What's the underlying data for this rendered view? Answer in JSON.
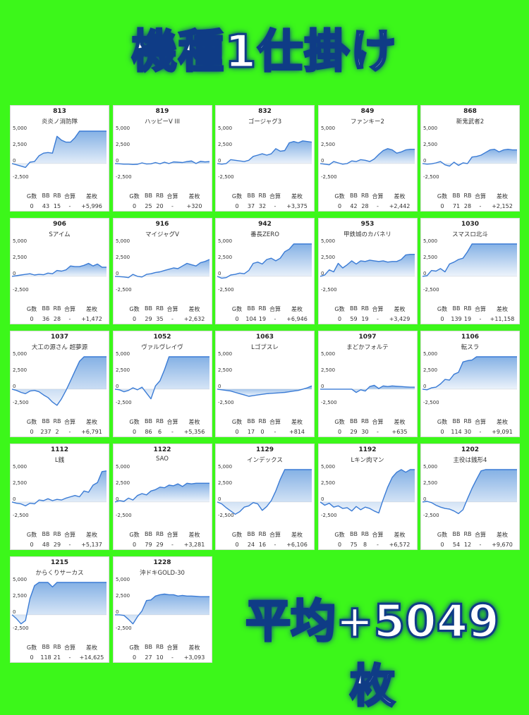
{
  "header": {
    "title": "機種1仕掛け"
  },
  "footer": {
    "average": "平均+5049枚"
  },
  "stat_headers": [
    "G数",
    "BB",
    "RB",
    "合算",
    "差枚"
  ],
  "colors": {
    "background": "#3cf71a",
    "line": "#3a7bd5",
    "fill": "#6fa3e0",
    "text_outline": "#0f3c86"
  },
  "chart_data": [
    {
      "type": "area",
      "number": "813",
      "name": "炎炎ノ消防隊",
      "ylim": [
        -3500,
        5000
      ],
      "yticks": [
        "5,000",
        "2,500",
        "0",
        "-2,500"
      ],
      "stats": {
        "g": "0",
        "bb": "43",
        "rb": "15",
        "gousan": "-",
        "samai": "+5,996"
      },
      "values": [
        0,
        -200,
        -400,
        -600,
        200,
        300,
        1200,
        1600,
        1700,
        1600,
        4200,
        3600,
        3300,
        3300,
        4000,
        5000,
        5000,
        5000,
        5000,
        5000,
        5000,
        5000
      ]
    },
    {
      "type": "area",
      "number": "819",
      "name": "ハッピーV III",
      "ylim": [
        -3500,
        5000
      ],
      "yticks": [
        "5,000",
        "2,500",
        "0",
        "-2,500"
      ],
      "stats": {
        "g": "0",
        "bb": "25",
        "rb": "20",
        "gousan": "-",
        "samai": "+320"
      },
      "values": [
        0,
        -50,
        -100,
        -100,
        -150,
        -120,
        100,
        -80,
        -50,
        150,
        -50,
        200,
        0,
        250,
        200,
        150,
        300,
        400,
        0,
        350,
        250,
        300
      ]
    },
    {
      "type": "area",
      "number": "832",
      "name": "ゴージャグ3",
      "ylim": [
        -3500,
        5000
      ],
      "yticks": [
        "5,000",
        "2,500",
        "0",
        "-2,500"
      ],
      "stats": {
        "g": "0",
        "bb": "37",
        "rb": "32",
        "gousan": "-",
        "samai": "+3,375"
      },
      "values": [
        0,
        -100,
        0,
        600,
        500,
        400,
        300,
        500,
        1100,
        1300,
        1500,
        1300,
        1500,
        2300,
        1900,
        2000,
        3200,
        3400,
        3200,
        3500,
        3400,
        3300
      ]
    },
    {
      "type": "area",
      "number": "849",
      "name": "ファンキー2",
      "ylim": [
        -3500,
        5000
      ],
      "yticks": [
        "5,000",
        "2,500",
        "0",
        "-2,500"
      ],
      "stats": {
        "g": "0",
        "bb": "42",
        "rb": "28",
        "gousan": "-",
        "samai": "+2,442"
      },
      "values": [
        0,
        -100,
        -200,
        300,
        100,
        -100,
        0,
        400,
        300,
        600,
        500,
        300,
        700,
        1400,
        2000,
        2300,
        2100,
        1600,
        1800,
        2100,
        2200,
        2200
      ]
    },
    {
      "type": "area",
      "number": "868",
      "name": "新鬼武者2",
      "ylim": [
        -3500,
        5000
      ],
      "yticks": [
        "5,000",
        "2,500",
        "0",
        "-2,500"
      ],
      "stats": {
        "g": "0",
        "bb": "71",
        "rb": "28",
        "gousan": "-",
        "samai": "+2,152"
      },
      "values": [
        0,
        -100,
        -50,
        100,
        300,
        -200,
        -400,
        200,
        -300,
        100,
        0,
        1000,
        1100,
        1300,
        1700,
        2100,
        2200,
        1800,
        2100,
        2200,
        2100,
        2100
      ]
    },
    {
      "type": "area",
      "number": "906",
      "name": "Sアイム",
      "ylim": [
        -3500,
        5000
      ],
      "yticks": [
        "5,000",
        "2,500",
        "0",
        "-2,500"
      ],
      "stats": {
        "g": "0",
        "bb": "36",
        "rb": "28",
        "gousan": "-",
        "samai": "+1,472"
      },
      "values": [
        0,
        100,
        200,
        300,
        400,
        200,
        300,
        250,
        500,
        400,
        900,
        800,
        1000,
        1600,
        1500,
        1500,
        1700,
        2000,
        1600,
        1900,
        1400,
        1400
      ]
    },
    {
      "type": "area",
      "number": "916",
      "name": "マイジャグV",
      "ylim": [
        -3500,
        5000
      ],
      "yticks": [
        "5,000",
        "2,500",
        "0",
        "-2,500"
      ],
      "stats": {
        "g": "0",
        "bb": "29",
        "rb": "35",
        "gousan": "-",
        "samai": "+2,632"
      },
      "values": [
        0,
        -50,
        -100,
        -200,
        300,
        0,
        -100,
        300,
        400,
        600,
        700,
        900,
        1100,
        1300,
        1200,
        1600,
        2000,
        1800,
        1600,
        2100,
        2300,
        2600
      ]
    },
    {
      "type": "area",
      "number": "942",
      "name": "番長ZERO",
      "ylim": [
        -3500,
        5000
      ],
      "yticks": [
        "5,000",
        "2,500",
        "0",
        "-2,500"
      ],
      "stats": {
        "g": "0",
        "bb": "104",
        "rb": "19",
        "gousan": "-",
        "samai": "+6,946"
      },
      "values": [
        0,
        -300,
        -200,
        200,
        300,
        500,
        400,
        900,
        2000,
        2200,
        1900,
        2600,
        2800,
        2400,
        2800,
        3800,
        4200,
        5000,
        5000,
        5000,
        5000,
        5000
      ]
    },
    {
      "type": "area",
      "number": "953",
      "name": "甲鉄城のカバネリ",
      "ylim": [
        -3500,
        5000
      ],
      "yticks": [
        "5,000",
        "2,500",
        "0",
        "-2,500"
      ],
      "stats": {
        "g": "0",
        "bb": "59",
        "rb": "19",
        "gousan": "-",
        "samai": "+3,429"
      },
      "values": [
        0,
        200,
        1000,
        700,
        2000,
        1300,
        1800,
        2400,
        1900,
        2400,
        2300,
        2500,
        2400,
        2300,
        2400,
        2200,
        2300,
        2300,
        2600,
        3300,
        3400,
        3400
      ]
    },
    {
      "type": "area",
      "number": "1030",
      "name": "スマスロ北斗",
      "ylim": [
        -3500,
        5000
      ],
      "yticks": [
        "5,000",
        "2,500",
        "0",
        "-2,500"
      ],
      "stats": {
        "g": "0",
        "bb": "139",
        "rb": "19",
        "gousan": "-",
        "samai": "+11,158"
      },
      "values": [
        0,
        100,
        900,
        800,
        1200,
        700,
        1900,
        2200,
        2600,
        2800,
        3800,
        5000,
        5000,
        5000,
        5000,
        5000,
        5000,
        5000,
        5000,
        5000,
        5000,
        5000
      ]
    },
    {
      "type": "area",
      "number": "1037",
      "name": "大工の源さん 超夢源",
      "ylim": [
        -3500,
        5000
      ],
      "yticks": [
        "5,000",
        "2,500",
        "0",
        "-2,500"
      ],
      "stats": {
        "g": "0",
        "bb": "237",
        "rb": "2",
        "gousan": "-",
        "samai": "+6,791"
      },
      "values": [
        0,
        -200,
        -500,
        -700,
        -300,
        -200,
        -400,
        -900,
        -1300,
        -2000,
        -2500,
        -1500,
        -200,
        1300,
        2800,
        4300,
        5000,
        5000,
        5000,
        5000,
        5000,
        5000
      ]
    },
    {
      "type": "area",
      "number": "1052",
      "name": "ヴァルヴレイヴ",
      "ylim": [
        -3500,
        5000
      ],
      "yticks": [
        "5,000",
        "2,500",
        "0",
        "-2,500"
      ],
      "stats": {
        "g": "0",
        "bb": "86",
        "rb": "6",
        "gousan": "-",
        "samai": "+5,356"
      },
      "values": [
        0,
        -100,
        -400,
        -200,
        200,
        -100,
        300,
        -600,
        -1500,
        500,
        1300,
        3000,
        5000,
        5000,
        5000,
        5000,
        5000,
        5000,
        5000,
        5000,
        5000,
        5000
      ]
    },
    {
      "type": "area",
      "number": "1063",
      "name": "Lゴブスレ",
      "ylim": [
        -3500,
        5000
      ],
      "yticks": [
        "5,000",
        "2,500",
        "0",
        "-2,500"
      ],
      "stats": {
        "g": "0",
        "bb": "17",
        "rb": "0",
        "gousan": "-",
        "samai": "+814"
      },
      "values": [
        0,
        -100,
        -200,
        -300,
        -500,
        -700,
        -900,
        -1100,
        -1000,
        -900,
        -800,
        -700,
        -650,
        -600,
        -550,
        -500,
        -400,
        -300,
        -200,
        0,
        200,
        500
      ]
    },
    {
      "type": "area",
      "number": "1097",
      "name": "まどかフォルテ",
      "ylim": [
        -3500,
        5000
      ],
      "yticks": [
        "5,000",
        "2,500",
        "0",
        "-2,500"
      ],
      "stats": {
        "g": "0",
        "bb": "29",
        "rb": "30",
        "gousan": "-",
        "samai": "+635"
      },
      "values": [
        0,
        0,
        0,
        0,
        0,
        0,
        0,
        0,
        -500,
        -100,
        -300,
        400,
        600,
        100,
        500,
        400,
        500,
        450,
        400,
        350,
        300,
        300
      ]
    },
    {
      "type": "area",
      "number": "1106",
      "name": "転スラ",
      "ylim": [
        -3500,
        5000
      ],
      "yticks": [
        "5,000",
        "2,500",
        "0",
        "-2,500"
      ],
      "stats": {
        "g": "0",
        "bb": "114",
        "rb": "30",
        "gousan": "-",
        "samai": "+9,091"
      },
      "values": [
        0,
        -100,
        200,
        300,
        800,
        1500,
        1400,
        2300,
        2600,
        4200,
        4400,
        4500,
        5000,
        5000,
        5000,
        5000,
        5000,
        5000,
        5000,
        5000,
        5000,
        5000
      ]
    },
    {
      "type": "area",
      "number": "1112",
      "name": "L銭",
      "ylim": [
        -3500,
        5000
      ],
      "yticks": [
        "5,000",
        "2,500",
        "0",
        "-2,500"
      ],
      "stats": {
        "g": "0",
        "bb": "48",
        "rb": "29",
        "gousan": "-",
        "samai": "+5,137"
      },
      "values": [
        0,
        -200,
        -300,
        -600,
        -200,
        -300,
        300,
        200,
        500,
        200,
        400,
        300,
        600,
        800,
        1000,
        800,
        1700,
        1500,
        2600,
        3000,
        4700,
        4800
      ]
    },
    {
      "type": "area",
      "number": "1122",
      "name": "SAO",
      "ylim": [
        -3500,
        5000
      ],
      "yticks": [
        "5,000",
        "2,500",
        "0",
        "-2,500"
      ],
      "stats": {
        "g": "0",
        "bb": "79",
        "rb": "29",
        "gousan": "-",
        "samai": "+3,281"
      },
      "values": [
        0,
        200,
        100,
        600,
        300,
        1000,
        1300,
        1100,
        1700,
        1900,
        2300,
        2200,
        2600,
        2500,
        2800,
        2400,
        2900,
        2800,
        2900,
        2900,
        2900,
        2900
      ]
    },
    {
      "type": "area",
      "number": "1129",
      "name": "インデックス",
      "ylim": [
        -3500,
        5000
      ],
      "yticks": [
        "5,000",
        "2,500",
        "0",
        "-2,500"
      ],
      "stats": {
        "g": "0",
        "bb": "24",
        "rb": "16",
        "gousan": "-",
        "samai": "+6,106"
      },
      "values": [
        0,
        -300,
        -900,
        -1400,
        -1900,
        -1500,
        -800,
        -600,
        -100,
        -300,
        -1300,
        -700,
        200,
        1700,
        3500,
        5000,
        5000,
        5000,
        5000,
        5000,
        5000,
        5000
      ]
    },
    {
      "type": "area",
      "number": "1192",
      "name": "Lキン肉マン",
      "ylim": [
        -3500,
        5000
      ],
      "yticks": [
        "5,000",
        "2,500",
        "0",
        "-2,500"
      ],
      "stats": {
        "g": "0",
        "bb": "75",
        "rb": "8",
        "gousan": "-",
        "samai": "+6,572"
      },
      "values": [
        0,
        -500,
        -200,
        -800,
        -600,
        -1000,
        -900,
        -1400,
        -700,
        -1200,
        -800,
        -1000,
        -1400,
        -1700,
        400,
        2300,
        3800,
        4600,
        5000,
        4600,
        5000,
        5000
      ]
    },
    {
      "type": "area",
      "number": "1202",
      "name": "主役は銭形4",
      "ylim": [
        -3500,
        5000
      ],
      "yticks": [
        "5,000",
        "2,500",
        "0",
        "-2,500"
      ],
      "stats": {
        "g": "0",
        "bb": "54",
        "rb": "12",
        "gousan": "-",
        "samai": "+9,670"
      },
      "values": [
        0,
        100,
        -100,
        -500,
        -800,
        -1000,
        -1100,
        -1400,
        -1800,
        -1200,
        500,
        2100,
        3500,
        4800,
        5000,
        5000,
        5000,
        5000,
        5000,
        5000,
        5000,
        5000
      ]
    },
    {
      "type": "area",
      "number": "1215",
      "name": "からくりサーカス",
      "ylim": [
        -3500,
        5000
      ],
      "yticks": [
        "5,000",
        "2,500",
        "0",
        "-2,500"
      ],
      "stats": {
        "g": "0",
        "bb": "118",
        "rb": "21",
        "gousan": "-",
        "samai": "+14,625"
      },
      "values": [
        0,
        -600,
        -1400,
        -900,
        2500,
        4500,
        5000,
        5000,
        5000,
        4300,
        5000,
        5000,
        5000,
        5000,
        5000,
        5000,
        5000,
        5000,
        5000,
        5000,
        5000,
        5000
      ]
    },
    {
      "type": "area",
      "number": "1228",
      "name": "沖ドキGOLD-30",
      "ylim": [
        -3500,
        5000
      ],
      "yticks": [
        "5,000",
        "2,500",
        "0",
        "-2,500"
      ],
      "stats": {
        "g": "0",
        "bb": "27",
        "rb": "10",
        "gousan": "-",
        "samai": "+3,093"
      },
      "values": [
        0,
        0,
        -100,
        -700,
        -1400,
        -300,
        600,
        2200,
        2300,
        2900,
        3100,
        3200,
        3100,
        3100,
        2900,
        3000,
        2900,
        2900,
        2850,
        2800,
        2800,
        2800
      ]
    }
  ]
}
